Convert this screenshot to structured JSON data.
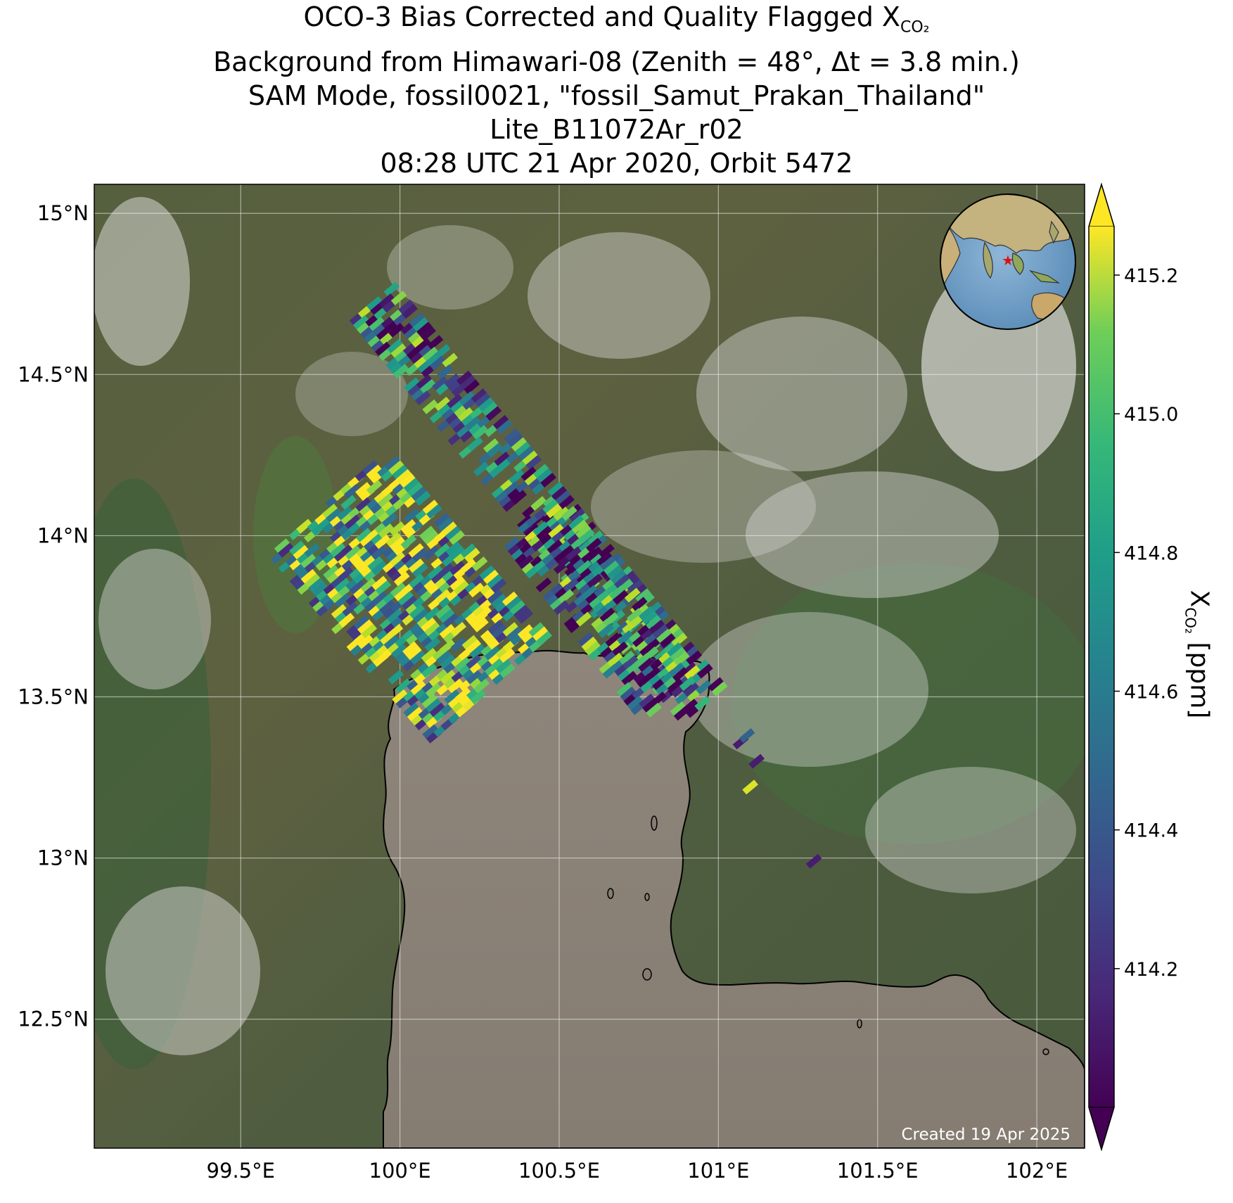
{
  "title": {
    "line1_prefix": "OCO-3 Bias Corrected and Quality Flagged X",
    "line1_sub": "CO₂",
    "line2": "Background from Himawari-08 (Zenith = 48°, Δt =  3.8 min.)",
    "line3": "SAM Mode, fossil0021, \"fossil_Samut_Prakan_Thailand\"",
    "line4": "Lite_B11072Ar_r02",
    "line5": "08:28 UTC 21 Apr 2020, Orbit 5472"
  },
  "map": {
    "lon_range": [
      99.04,
      102.15
    ],
    "lat_range": [
      12.1,
      15.09
    ],
    "lon_ticks": [
      {
        "value": 99.5,
        "label": "99.5°E"
      },
      {
        "value": 100.0,
        "label": "100°E"
      },
      {
        "value": 100.5,
        "label": "100.5°E"
      },
      {
        "value": 101.0,
        "label": "101°E"
      },
      {
        "value": 101.5,
        "label": "101.5°E"
      },
      {
        "value": 102.0,
        "label": "102°E"
      }
    ],
    "lat_ticks": [
      {
        "value": 15.0,
        "label": "15°N"
      },
      {
        "value": 14.5,
        "label": "14.5°N"
      },
      {
        "value": 14.0,
        "label": "14°N"
      },
      {
        "value": 13.5,
        "label": "13.5°N"
      },
      {
        "value": 13.0,
        "label": "13°N"
      },
      {
        "value": 12.5,
        "label": "12.5°N"
      }
    ],
    "grid": true,
    "background": "Himawari-08 true-color imagery",
    "inset": "globe-locator",
    "target_marker": {
      "lon": 100.6,
      "lat": 13.6,
      "color": "#ff0000"
    },
    "credit": "Created 19 Apr 2025"
  },
  "colorbar": {
    "colormap": "viridis",
    "vmin": 414.0,
    "vmax": 415.27,
    "extend": "both",
    "ticks": [
      {
        "value": 414.2,
        "label": "414.2"
      },
      {
        "value": 414.4,
        "label": "414.4"
      },
      {
        "value": 414.6,
        "label": "414.6"
      },
      {
        "value": 414.8,
        "label": "414.8"
      },
      {
        "value": 415.0,
        "label": "415.0"
      },
      {
        "value": 415.2,
        "label": "415.2"
      }
    ],
    "label_prefix": "X",
    "label_sub": "CO₂",
    "label_suffix": " [ppm]"
  },
  "chart_data": {
    "type": "scatter",
    "title": "",
    "xlabel": "",
    "ylabel": "",
    "xlim": [
      99.04,
      102.15
    ],
    "ylim": [
      12.1,
      15.09
    ],
    "swaths": [
      {
        "from": [
          99.92,
          14.72
        ],
        "to": [
          100.95,
          13.48
        ],
        "width_deg": 0.14,
        "mean_ppm": 414.45
      },
      {
        "from": [
          99.78,
          14.1
        ],
        "to": [
          100.28,
          13.53
        ],
        "width_deg": 0.46,
        "mean_ppm": 414.85
      },
      {
        "from": [
          100.42,
          14.05
        ],
        "to": [
          100.85,
          13.5
        ],
        "width_deg": 0.2,
        "mean_ppm": 414.5
      }
    ],
    "isolated_points": [
      {
        "lon": 101.07,
        "lat": 13.36,
        "xco2": 414.1
      },
      {
        "lon": 101.09,
        "lat": 13.38,
        "xco2": 414.4
      },
      {
        "lon": 101.12,
        "lat": 13.3,
        "xco2": 414.1
      },
      {
        "lon": 101.1,
        "lat": 13.22,
        "xco2": 415.2
      },
      {
        "lon": 101.3,
        "lat": 12.99,
        "xco2": 414.1
      }
    ]
  }
}
